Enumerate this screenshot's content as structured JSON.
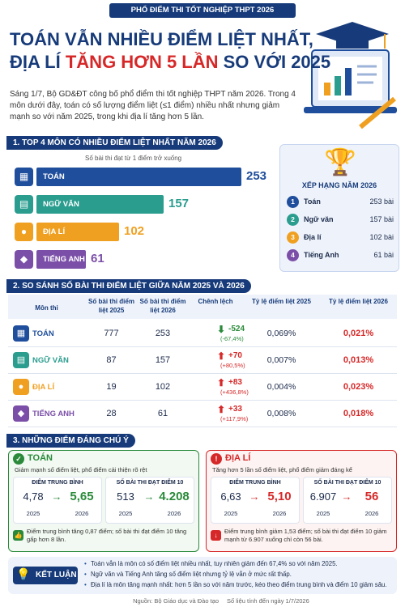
{
  "header": {
    "tag": "PHỔ ĐIỂM THI TỐT NGHIỆP THPT 2026",
    "title_line1": "TOÁN VẪN NHIỀU ĐIỂM LIỆT NHẤT,",
    "title_line2": [
      "ĐỊA LÍ ",
      "TĂNG HƠN 5 LẦN",
      " SO VỚI 2025"
    ],
    "intro": "Sáng 1/7, Bộ GD&ĐT công bố phổ điểm thi tốt nghiệp THPT năm 2026. Trong 4 môn dưới đây, toán có số lượng điểm liệt (≤1 điểm) nhiều nhất nhưng giảm mạnh so với năm 2025, trong khi địa lí tăng hơn 5 lần."
  },
  "section1": {
    "heading": "1. TOP 4 MÔN CÓ NHIỀU ĐIỂM LIỆT NHẤT NĂM 2026",
    "note": "Số bài thi đạt từ 1 điểm trở xuống",
    "bars": {
      "categories": [
        "TOÁN",
        "NGỮ VĂN",
        "ĐỊA LÍ",
        "TIẾNG ANH"
      ],
      "values": [
        253,
        157,
        102,
        61
      ],
      "colors": [
        "#1f4e9c",
        "#2a9d8f",
        "#f0a020",
        "#7b4fa8"
      ]
    },
    "ranking": {
      "title": "XẾP HẠNG NĂM 2026",
      "rows": [
        [
          "1",
          "Toán",
          "253 bài"
        ],
        [
          "2",
          "Ngữ văn",
          "157 bài"
        ],
        [
          "3",
          "Địa lí",
          "102 bài"
        ],
        [
          "4",
          "Tiếng Anh",
          "61 bài"
        ]
      ]
    }
  },
  "section2": {
    "heading": "2. SO SÁNH SỐ BÀI THI ĐIỂM LIỆT GIỮA NĂM 2025 VÀ 2026",
    "columns": [
      "Môn thi",
      "Số bài thi điểm liệt 2025",
      "Số bài thi điểm liệt 2026",
      "Chênh lệch",
      "Tỷ lệ điểm liệt 2025",
      "Tỷ lệ điểm liệt 2026"
    ],
    "rows": [
      [
        "TOÁN",
        "777",
        "253",
        "-524",
        "(-67,4%)",
        "0,069%",
        "0,021%"
      ],
      [
        "NGỮ VĂN",
        "87",
        "157",
        "+70",
        "(+80,5%)",
        "0,007%",
        "0,013%"
      ],
      [
        "ĐỊA LÍ",
        "19",
        "102",
        "+83",
        "(+436,8%)",
        "0,004%",
        "0,023%"
      ],
      [
        "TIẾNG ANH",
        "28",
        "61",
        "+33",
        "(+117,9%)",
        "0,008%",
        "0,018%"
      ]
    ]
  },
  "section3": {
    "heading": "3. NHỮNG ĐIỂM ĐÁNG CHÚ Ý",
    "cards": [
      {
        "title": "TOÁN",
        "subtitle": "Giảm mạnh số điểm liệt, phổ điểm cải thiện rõ rệt",
        "stats": [
          {
            "label": "ĐIỂM TRUNG BÌNH",
            "from": "4,78",
            "to": "5,65",
            "years": [
              "2025",
              "2026"
            ]
          },
          {
            "label": "SỐ BÀI THI ĐẠT ĐIỂM 10",
            "from": "513",
            "to": "4.208",
            "years": [
              "2025",
              "2026"
            ]
          }
        ],
        "note": "Điểm trung bình tăng 0,87 điểm; số bài thi đạt điểm 10 tăng gấp hơn 8 lần."
      },
      {
        "title": "ĐỊA LÍ",
        "subtitle": "Tăng hơn 5 lần số điểm liệt, phổ điểm giảm đáng kể",
        "stats": [
          {
            "label": "ĐIỂM TRUNG BÌNH",
            "from": "6,63",
            "to": "5,10",
            "years": [
              "2025",
              "2026"
            ]
          },
          {
            "label": "SỐ BÀI THI ĐẠT ĐIỂM 10",
            "from": "6.907",
            "to": "56",
            "years": [
              "2025",
              "2026"
            ]
          }
        ],
        "note": "Điểm trung bình giảm 1,53 điểm; số bài thi đạt điểm 10 giảm mạnh từ 6.907 xuống chỉ còn 56 bài."
      }
    ]
  },
  "conclusion": {
    "label": "KẾT LUẬN",
    "bullets": [
      "Toán vẫn là môn có số điểm liệt nhiều nhất, tuy nhiên giảm đến 67,4% so với năm 2025.",
      "Ngữ văn và Tiếng Anh tăng số điểm liệt nhưng tỷ lệ vẫn ở mức rất thấp.",
      "Địa lí là môn tăng mạnh nhất: hơn 5 lần so với năm trước, kéo theo điểm trung bình và điểm 10 giảm sâu."
    ]
  },
  "footer": [
    "Nguồn: Bộ Giáo dục và Đào tạo",
    "Số liệu tính đến ngày 1/7/2026"
  ]
}
